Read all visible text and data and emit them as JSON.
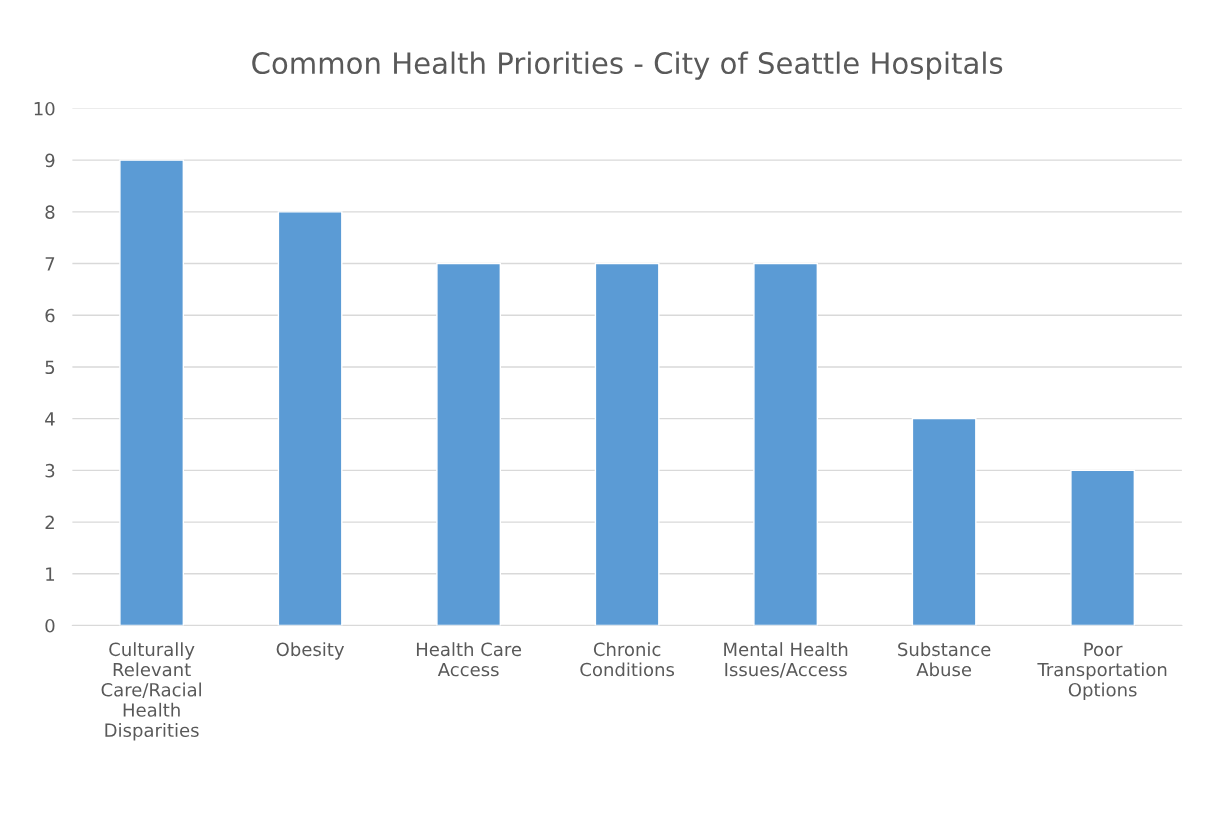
{
  "chart_data": {
    "type": "bar",
    "title": "Common Health Priorities - City of Seattle Hospitals",
    "categories": [
      "Culturally Relevant Care/Racial Health Disparities",
      "Obesity",
      "Health Care Access",
      "Chronic Conditions",
      "Mental Health Issues/Access",
      "Substance Abuse",
      "Poor Transportation Options"
    ],
    "values": [
      9,
      8,
      7,
      7,
      7,
      4,
      3
    ],
    "color": "#5b9bd5",
    "ylim": [
      0,
      10
    ],
    "yticks": [
      0,
      1,
      2,
      3,
      4,
      5,
      6,
      7,
      8,
      9,
      10
    ],
    "grid": "y"
  }
}
